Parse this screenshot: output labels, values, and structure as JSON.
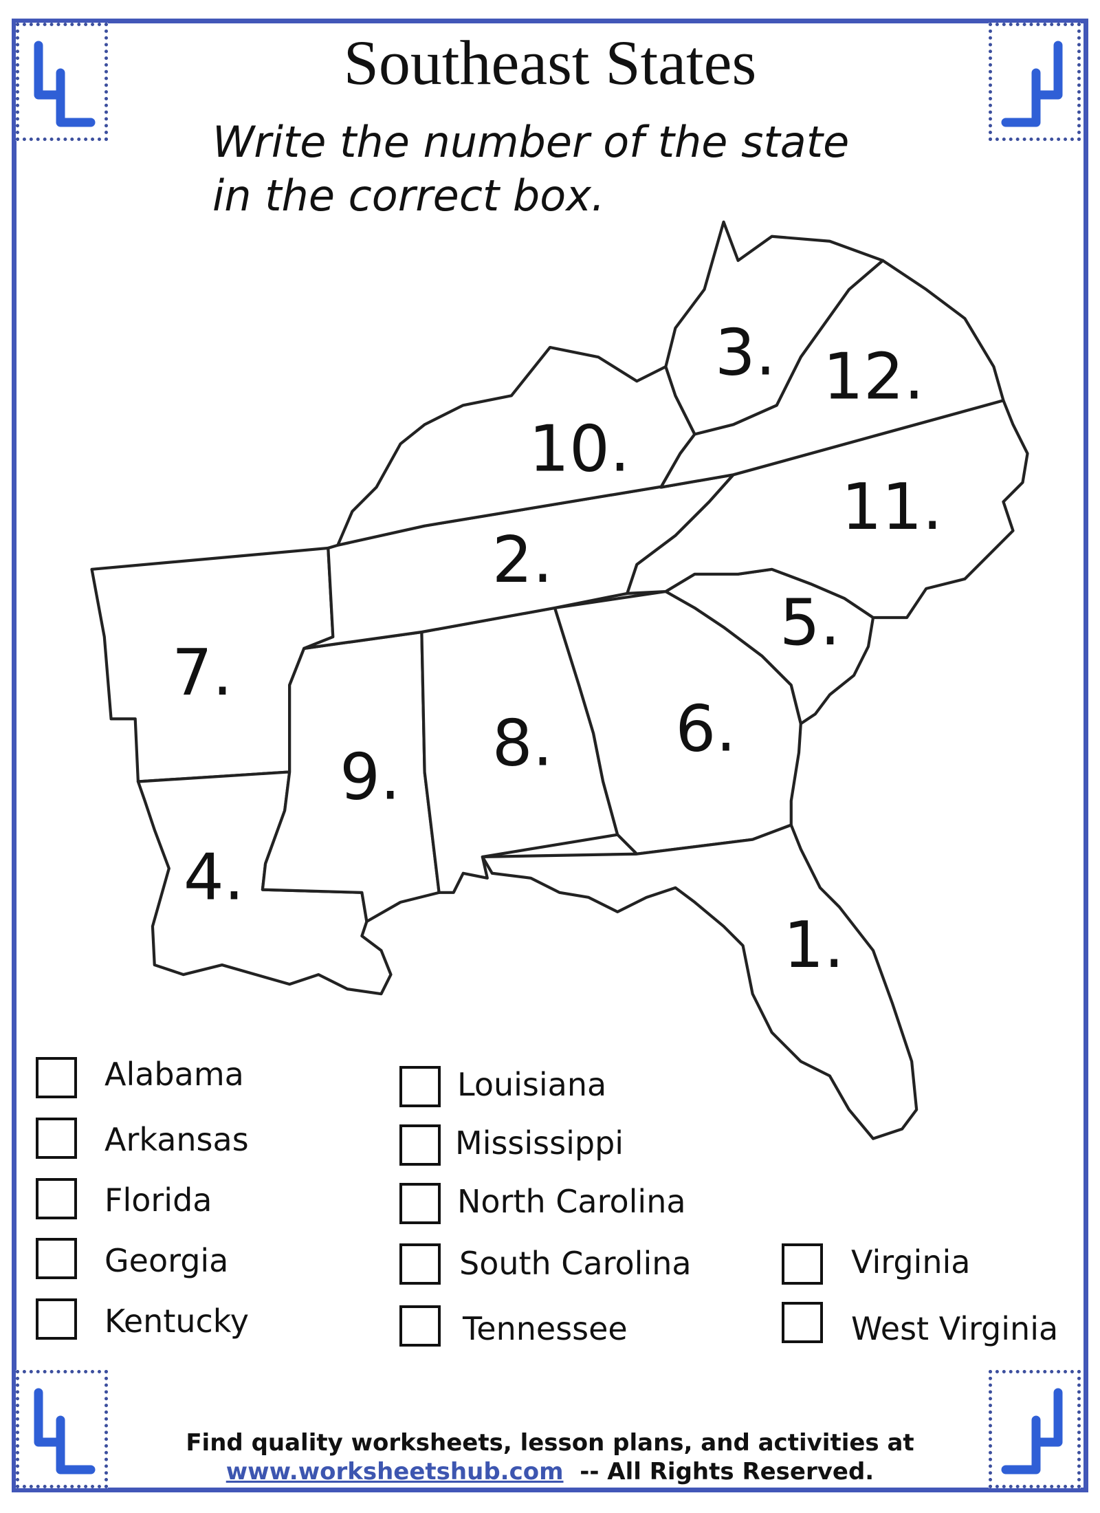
{
  "title": "Southeast States",
  "instructions": [
    "Write the number of the state",
    "in the correct box."
  ],
  "map": {
    "labels": [
      "1.",
      "2.",
      "3.",
      "4.",
      "5.",
      "6.",
      "7.",
      "8.",
      "9.",
      "10.",
      "11.",
      "12."
    ]
  },
  "checklist": {
    "column1": [
      "Alabama",
      "Arkansas",
      "Florida",
      "Georgia",
      "Kentucky"
    ],
    "column2": [
      "Louisiana",
      "Mississippi",
      "North Carolina",
      "South Carolina",
      "Tennessee"
    ],
    "column3": [
      "Virginia",
      "West Virginia"
    ]
  },
  "footer": {
    "line1": "Find quality worksheets, lesson plans, and activities at",
    "link": "www.worksheetshub.com",
    "rights": "-- All Rights Reserved."
  },
  "colors": {
    "frame": "#4257b8",
    "logo": "#2f5fd6",
    "link": "#3d56b0"
  },
  "icons": {
    "corner_logo": "worksheetshub-logo-icon"
  }
}
